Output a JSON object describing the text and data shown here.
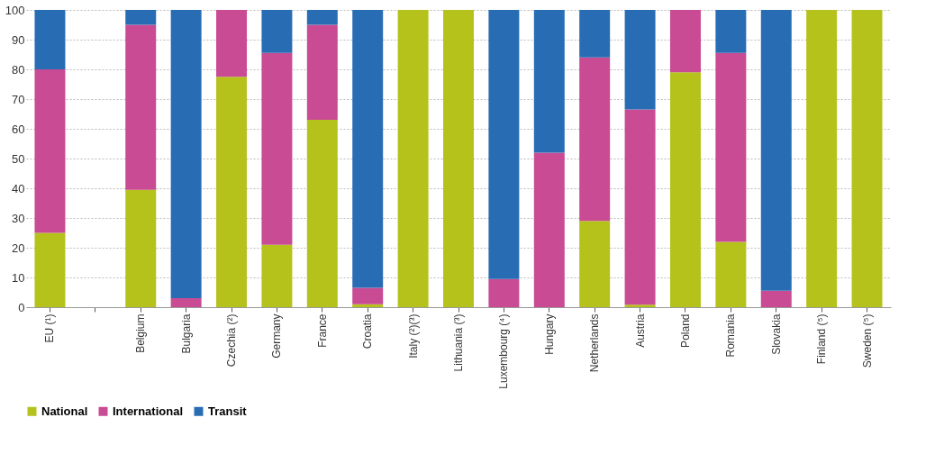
{
  "chart_data": {
    "type": "bar",
    "stacked": true,
    "categories": [
      "EU (¹)",
      null,
      "Belgium",
      "Bulgaria",
      "Czechia (²)",
      "Germany",
      "France",
      "Croatia",
      "Italy (²)(³)",
      "Lithuania (³)",
      "Luxembourg (⁴)",
      "Hungary",
      "Netherlands",
      "Austria",
      "Poland",
      "Romania",
      "Slovakia",
      "Finland (⁵)",
      "Sweden (⁵)"
    ],
    "series": [
      {
        "name": "National",
        "color": "#b5c21c",
        "values": [
          25,
          null,
          39.5,
          0,
          77.5,
          21,
          63,
          1,
          100,
          100,
          0,
          0,
          29,
          0.8,
          79,
          22,
          0,
          100,
          100
        ]
      },
      {
        "name": "International",
        "color": "#c84b94",
        "values": [
          55,
          null,
          55.5,
          3,
          22.5,
          64.5,
          32,
          5.5,
          0,
          0,
          9.5,
          52,
          55,
          65.7,
          21,
          63.5,
          5.5,
          0,
          0
        ]
      },
      {
        "name": "Transit",
        "color": "#286db4",
        "values": [
          20,
          null,
          5,
          97,
          0,
          14.5,
          5,
          93.5,
          0,
          0,
          90.5,
          48,
          16,
          33.5,
          0,
          14.5,
          94.5,
          0,
          0
        ]
      }
    ],
    "ylim": [
      0,
      100
    ],
    "yticks": [
      0,
      10,
      20,
      30,
      40,
      50,
      60,
      70,
      80,
      90,
      100
    ],
    "grid": "y",
    "legend": "bottom"
  }
}
